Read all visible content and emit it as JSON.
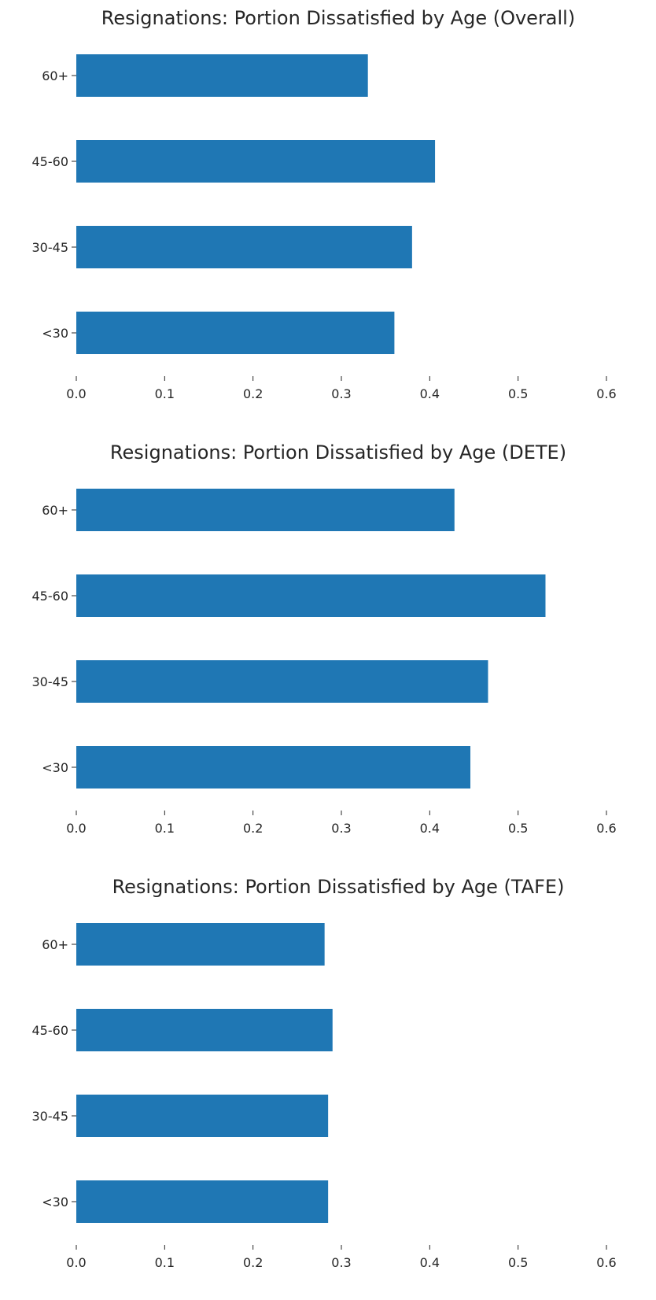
{
  "figure": {
    "bar_color": "#1f77b4",
    "text_color": "#262626",
    "background": "#ffffff"
  },
  "chart_data": [
    {
      "type": "bar",
      "orientation": "horizontal",
      "title": "Resignations: Portion Dissatisfied by Age (Overall)",
      "categories": [
        "<30",
        "30-45",
        "45-60",
        "60+"
      ],
      "values": [
        0.36,
        0.38,
        0.406,
        0.33
      ],
      "xlabel": "",
      "ylabel": "",
      "xlim": [
        0,
        0.6
      ],
      "xticks": [
        "0.0",
        "0.1",
        "0.2",
        "0.3",
        "0.4",
        "0.5",
        "0.6"
      ],
      "grid": false,
      "spines": false
    },
    {
      "type": "bar",
      "orientation": "horizontal",
      "title": "Resignations: Portion Dissatisfied by Age (DETE)",
      "categories": [
        "<30",
        "30-45",
        "45-60",
        "60+"
      ],
      "values": [
        0.446,
        0.466,
        0.531,
        0.428
      ],
      "xlabel": "",
      "ylabel": "",
      "xlim": [
        0,
        0.6
      ],
      "xticks": [
        "0.0",
        "0.1",
        "0.2",
        "0.3",
        "0.4",
        "0.5",
        "0.6"
      ],
      "grid": false,
      "spines": false
    },
    {
      "type": "bar",
      "orientation": "horizontal",
      "title": "Resignations: Portion Dissatisfied by Age (TAFE)",
      "categories": [
        "<30",
        "30-45",
        "45-60",
        "60+"
      ],
      "values": [
        0.285,
        0.285,
        0.29,
        0.281
      ],
      "xlabel": "",
      "ylabel": "",
      "xlim": [
        0,
        0.6
      ],
      "xticks": [
        "0.0",
        "0.1",
        "0.2",
        "0.3",
        "0.4",
        "0.5",
        "0.6"
      ],
      "grid": false,
      "spines": false
    }
  ]
}
